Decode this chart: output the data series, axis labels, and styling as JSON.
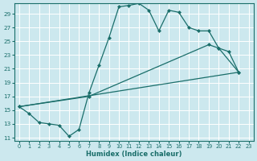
{
  "xlabel": "Humidex (Indice chaleur)",
  "bg_color": "#cce8ee",
  "grid_color": "#ffffff",
  "line_color": "#1a6e6a",
  "xlim": [
    -0.5,
    23.5
  ],
  "ylim": [
    10.5,
    30.5
  ],
  "xticks": [
    0,
    1,
    2,
    3,
    4,
    5,
    6,
    7,
    8,
    9,
    10,
    11,
    12,
    13,
    14,
    15,
    16,
    17,
    18,
    19,
    20,
    21,
    22,
    23
  ],
  "yticks": [
    11,
    13,
    15,
    17,
    19,
    21,
    23,
    25,
    27,
    29
  ],
  "line1_x": [
    0,
    1,
    2,
    3,
    4,
    5,
    6,
    7,
    8,
    9,
    10,
    11,
    12,
    13,
    14,
    15,
    16,
    17,
    18,
    19,
    20,
    21,
    22
  ],
  "line1_y": [
    15.5,
    14.5,
    13.2,
    13.0,
    12.8,
    11.2,
    12.2,
    17.5,
    21.5,
    25.5,
    30.0,
    30.2,
    30.5,
    29.5,
    26.5,
    29.5,
    29.2,
    27.0,
    26.5,
    26.5,
    24.0,
    23.5,
    20.5
  ],
  "line2_x": [
    0,
    7,
    19,
    20,
    22
  ],
  "line2_y": [
    15.5,
    17.0,
    24.5,
    24.0,
    20.5
  ],
  "line3_x": [
    0,
    22
  ],
  "line3_y": [
    15.5,
    20.5
  ]
}
